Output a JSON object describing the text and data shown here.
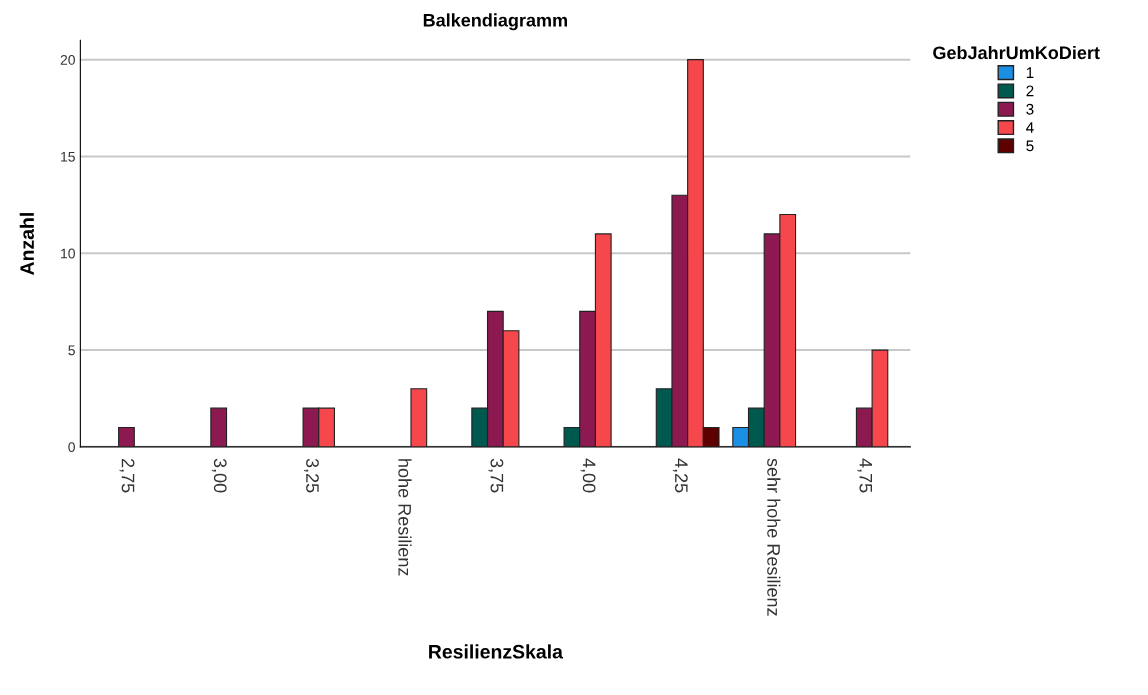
{
  "chart_data": {
    "type": "bar",
    "title": "Balkendiagramm",
    "xlabel": "ResilienzSkala",
    "ylabel": "Anzahl",
    "legend_title": "GebJahrUmKoDiert",
    "legend": "top right",
    "grid": "y",
    "categories": [
      "2,75",
      "3,00",
      "3,25",
      "hohe Resilienz",
      "3,75",
      "4,00",
      "4,25",
      "sehr hohe Resilienz",
      "4,75"
    ],
    "ylim": [
      0,
      21
    ],
    "yticks": [
      0,
      5,
      10,
      15,
      20
    ],
    "series": [
      {
        "name": "1",
        "color": "#1a8fe3",
        "values": [
          null,
          null,
          null,
          null,
          null,
          null,
          null,
          1,
          null
        ]
      },
      {
        "name": "2",
        "color": "#00594f",
        "values": [
          null,
          null,
          null,
          null,
          2,
          1,
          3,
          2,
          null
        ]
      },
      {
        "name": "3",
        "color": "#8c1a50",
        "values": [
          1,
          2,
          2,
          null,
          7,
          7,
          13,
          11,
          2
        ]
      },
      {
        "name": "4",
        "color": "#f5474c",
        "values": [
          null,
          null,
          2,
          3,
          6,
          11,
          20,
          12,
          5
        ]
      },
      {
        "name": "5",
        "color": "#5c0000",
        "values": [
          null,
          null,
          null,
          null,
          null,
          null,
          1,
          null,
          null
        ]
      }
    ]
  }
}
